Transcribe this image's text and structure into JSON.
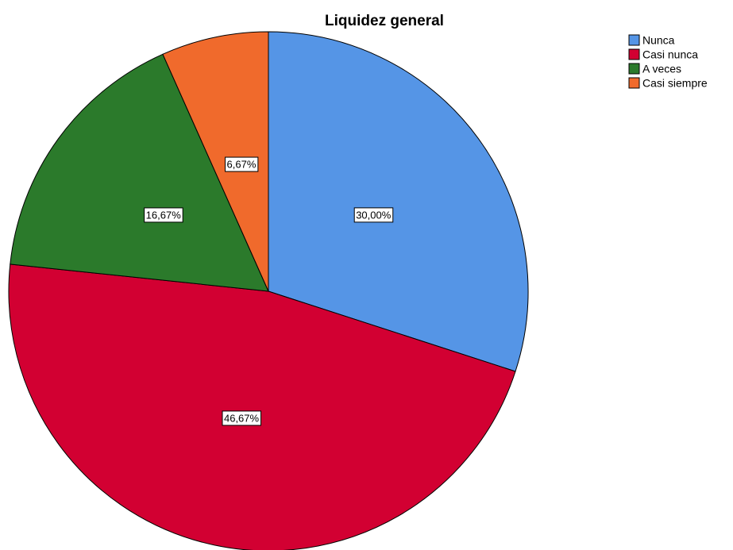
{
  "chart_data": {
    "type": "pie",
    "title": "Liquidez general",
    "categories": [
      "Nunca",
      "Casi nunca",
      "A veces",
      "Casi siempre"
    ],
    "values": [
      30.0,
      46.67,
      16.67,
      6.67
    ],
    "value_labels": [
      "30,00%",
      "46,67%",
      "16,67%",
      "6,67%"
    ],
    "colors": [
      "#5595E6",
      "#D20032",
      "#2B7A2B",
      "#F06A2C"
    ],
    "start_angle": "12 o'clock",
    "direction": "clockwise",
    "legend": {
      "placement": "top-right",
      "entries": [
        "Nunca",
        "Casi nunca",
        "A veces",
        "Casi siempre"
      ]
    }
  }
}
